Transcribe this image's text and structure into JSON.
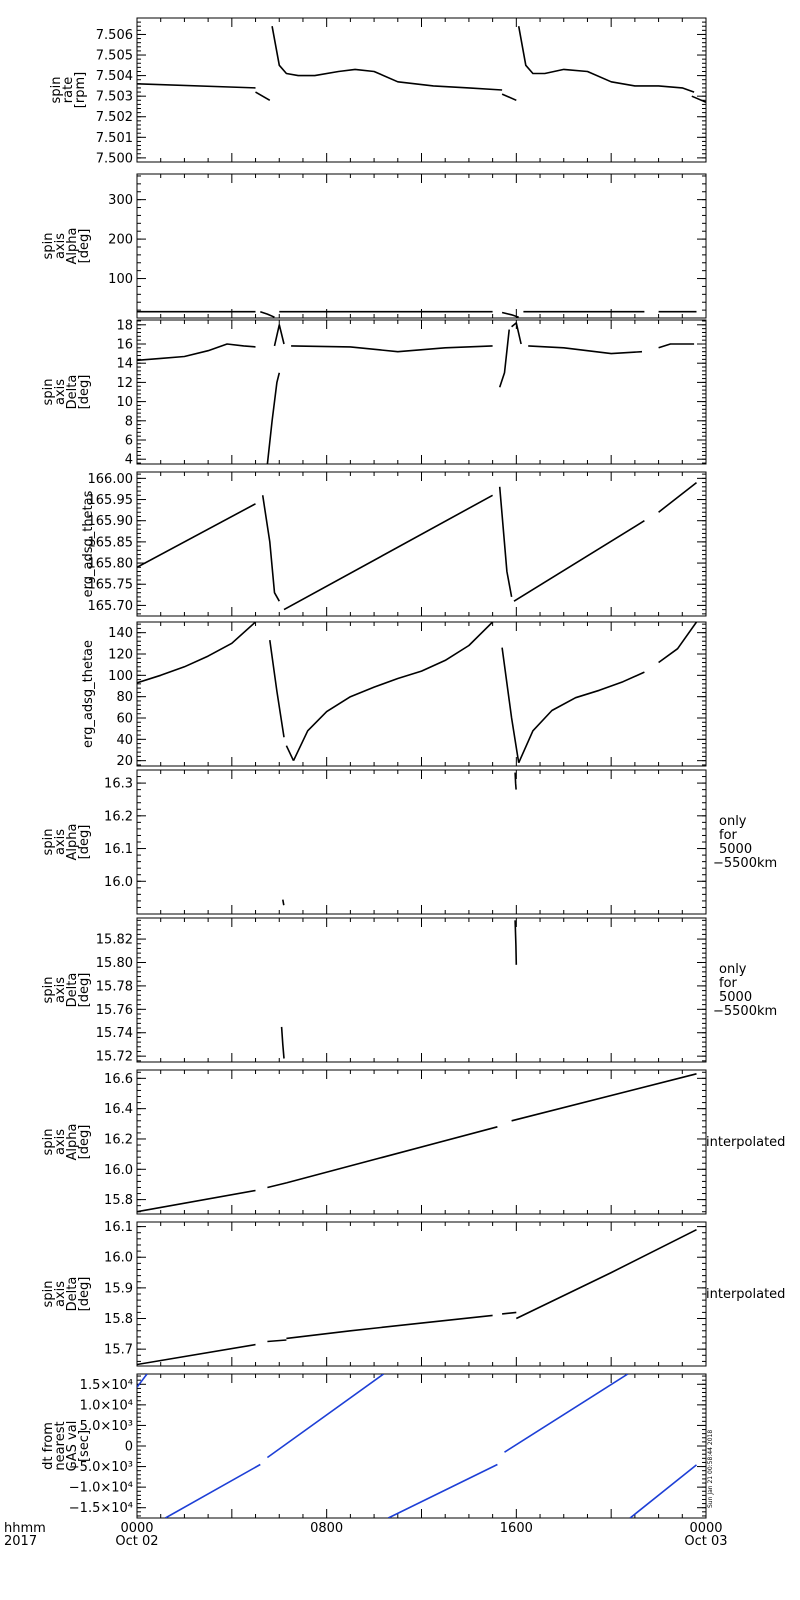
{
  "chart_data": [
    {
      "type": "scatter",
      "ylabel_lines": [
        "spin",
        "rate",
        "[rpm]"
      ],
      "ylim": [
        7.4998,
        7.5068
      ],
      "yticks": [
        7.5,
        7.501,
        7.502,
        7.503,
        7.504,
        7.505,
        7.506
      ],
      "ytick_labels": [
        "7.500",
        "7.501",
        "7.502",
        "7.503",
        "7.504",
        "7.505",
        "7.506"
      ],
      "color": "#000000",
      "segments": [
        {
          "x": [
            0.0,
            5.0
          ],
          "y": [
            7.5036,
            7.5034
          ]
        },
        {
          "x": [
            5.0,
            5.6
          ],
          "y": [
            7.5032,
            7.5028
          ]
        },
        {
          "x": [
            5.7,
            6.0,
            6.3,
            6.8,
            7.5,
            8.5,
            9.2,
            10.0,
            11.0,
            12.5,
            14.0,
            15.4
          ],
          "y": [
            7.5064,
            7.5045,
            7.5041,
            7.504,
            7.504,
            7.5042,
            7.5043,
            7.5042,
            7.5037,
            7.5035,
            7.5034,
            7.5033
          ]
        },
        {
          "x": [
            15.4,
            16.0
          ],
          "y": [
            7.5031,
            7.5028
          ]
        },
        {
          "x": [
            16.1,
            16.4,
            16.7,
            17.2,
            18.0,
            19.0,
            20.0,
            21.0,
            22.0,
            23.0,
            23.5
          ],
          "y": [
            7.5064,
            7.5045,
            7.5041,
            7.5041,
            7.5043,
            7.5042,
            7.5037,
            7.5035,
            7.5035,
            7.5034,
            7.5032
          ]
        },
        {
          "x": [
            23.4,
            23.6,
            24.0
          ],
          "y": [
            7.503,
            7.5029,
            7.5027
          ]
        }
      ]
    },
    {
      "type": "scatter",
      "ylabel_lines": [
        "spin",
        "axis",
        "Alpha",
        "[deg]"
      ],
      "ylim": [
        0,
        365
      ],
      "yticks": [
        100,
        200,
        300
      ],
      "ytick_labels": [
        "100",
        "200",
        "300"
      ],
      "color": "#000000",
      "segments": [
        {
          "x": [
            0.0,
            5.0
          ],
          "y": [
            16,
            16
          ]
        },
        {
          "x": [
            5.2,
            5.5,
            5.8
          ],
          "y": [
            16,
            10,
            2
          ]
        },
        {
          "x": [
            6.0,
            15.0
          ],
          "y": [
            16,
            16
          ]
        },
        {
          "x": [
            15.4,
            15.8,
            16.1
          ],
          "y": [
            14,
            8,
            2
          ]
        },
        {
          "x": [
            16.3,
            21.4
          ],
          "y": [
            16,
            16
          ]
        },
        {
          "x": [
            22.0,
            23.6
          ],
          "y": [
            16,
            16
          ]
        }
      ]
    },
    {
      "type": "scatter",
      "ylabel_lines": [
        "spin",
        "axis",
        "Delta",
        "[deg]"
      ],
      "ylim": [
        3.5,
        18.5
      ],
      "yticks": [
        4,
        6,
        8,
        10,
        12,
        14,
        16,
        18
      ],
      "ytick_labels": [
        "4",
        "6",
        "8",
        "10",
        "12",
        "14",
        "16",
        "18"
      ],
      "color": "#000000",
      "segments": [
        {
          "x": [
            0.0,
            1.0,
            2.0,
            3.0,
            3.8,
            4.5,
            5.0
          ],
          "y": [
            14.3,
            14.5,
            14.7,
            15.3,
            16.0,
            15.8,
            15.7
          ]
        },
        {
          "x": [
            5.5,
            5.7,
            5.9,
            6.0
          ],
          "y": [
            3.5,
            8.0,
            12.0,
            13.0
          ]
        },
        {
          "x": [
            5.8,
            6.0,
            6.2
          ],
          "y": [
            15.8,
            18.0,
            16.0
          ]
        },
        {
          "x": [
            6.5,
            9.0,
            11.0,
            13.0,
            15.0
          ],
          "y": [
            15.8,
            15.7,
            15.2,
            15.6,
            15.8
          ]
        },
        {
          "x": [
            15.3,
            15.5,
            15.7
          ],
          "y": [
            11.5,
            13.0,
            17.5
          ]
        },
        {
          "x": [
            15.8,
            16.0,
            16.2
          ],
          "y": [
            17.8,
            18.2,
            16.0
          ]
        },
        {
          "x": [
            16.5,
            18.0,
            20.0,
            21.3
          ],
          "y": [
            15.8,
            15.6,
            15.0,
            15.2
          ]
        },
        {
          "x": [
            22.0,
            22.5,
            23.5
          ],
          "y": [
            15.6,
            16.0,
            16.0
          ]
        }
      ]
    },
    {
      "type": "scatter",
      "ylabel_lines": [
        "erg_adsg_thetas"
      ],
      "ylim": [
        165.675,
        166.015
      ],
      "yticks": [
        165.7,
        165.75,
        165.8,
        165.85,
        165.9,
        165.95,
        166.0
      ],
      "ytick_labels": [
        "165.70",
        "165.75",
        "165.80",
        "165.85",
        "165.90",
        "165.95",
        "166.00"
      ],
      "color": "#000000",
      "segments": [
        {
          "x": [
            0.0,
            5.0
          ],
          "y": [
            165.79,
            165.94
          ]
        },
        {
          "x": [
            5.3,
            5.6,
            5.8,
            6.0
          ],
          "y": [
            165.96,
            165.85,
            165.73,
            165.71
          ]
        },
        {
          "x": [
            6.2,
            15.0
          ],
          "y": [
            165.69,
            165.96
          ]
        },
        {
          "x": [
            15.3,
            15.6,
            15.8
          ],
          "y": [
            165.98,
            165.78,
            165.72
          ]
        },
        {
          "x": [
            15.9,
            21.4
          ],
          "y": [
            165.71,
            165.9
          ]
        },
        {
          "x": [
            22.0,
            23.6
          ],
          "y": [
            165.92,
            165.99
          ]
        }
      ]
    },
    {
      "type": "scatter",
      "ylabel_lines": [
        "erg_adsg_thetae"
      ],
      "ylim": [
        15,
        150
      ],
      "yticks": [
        20,
        40,
        60,
        80,
        100,
        120,
        140
      ],
      "ytick_labels": [
        "20",
        "40",
        "60",
        "80",
        "100",
        "120",
        "140"
      ],
      "color": "#000000",
      "segments": [
        {
          "x": [
            0.0,
            1.0,
            2.0,
            3.0,
            4.0,
            5.0
          ],
          "y": [
            93,
            100,
            108,
            118,
            130,
            150
          ]
        },
        {
          "x": [
            5.6,
            5.9,
            6.2
          ],
          "y": [
            133,
            85,
            42
          ]
        },
        {
          "x": [
            6.3,
            6.6
          ],
          "y": [
            34,
            20
          ]
        },
        {
          "x": [
            6.6,
            7.2,
            8.0,
            9.0,
            10.0,
            11.0,
            12.0,
            13.0,
            14.0,
            15.0
          ],
          "y": [
            20,
            48,
            66,
            80,
            89,
            97,
            104,
            114,
            128,
            150
          ]
        },
        {
          "x": [
            15.4,
            15.8,
            16.1
          ],
          "y": [
            126,
            60,
            18
          ]
        },
        {
          "x": [
            16.1,
            16.7,
            17.5,
            18.5,
            19.5,
            20.5,
            21.4
          ],
          "y": [
            18,
            48,
            67,
            79,
            86,
            94,
            103
          ]
        },
        {
          "x": [
            22.0,
            22.8,
            23.6
          ],
          "y": [
            112,
            125,
            150
          ]
        }
      ]
    },
    {
      "type": "scatter",
      "ylabel_lines": [
        "spin",
        "axis",
        "Alpha",
        "[deg]"
      ],
      "note_lines": [
        "only",
        "for",
        "5000",
        "−5500km"
      ],
      "ylim": [
        15.9,
        16.34
      ],
      "yticks": [
        16.0,
        16.1,
        16.2,
        16.3
      ],
      "ytick_labels": [
        "16.0",
        "16.1",
        "16.2",
        "16.3"
      ],
      "color": "#000000",
      "segments": [
        {
          "x": [
            6.15,
            6.17,
            6.19
          ],
          "y": [
            15.944,
            15.935,
            15.927
          ]
        },
        {
          "x": [
            15.95,
            15.97,
            15.99
          ],
          "y": [
            16.332,
            16.3,
            16.28
          ]
        }
      ]
    },
    {
      "type": "scatter",
      "ylabel_lines": [
        "spin",
        "axis",
        "Delta",
        "[deg]"
      ],
      "note_lines": [
        "only",
        "for",
        "5000",
        "−5500km"
      ],
      "ylim": [
        15.715,
        15.838
      ],
      "yticks": [
        15.72,
        15.74,
        15.76,
        15.78,
        15.8,
        15.82
      ],
      "ytick_labels": [
        "15.72",
        "15.74",
        "15.76",
        "15.78",
        "15.80",
        "15.82"
      ],
      "color": "#000000",
      "segments": [
        {
          "x": [
            6.1,
            6.15,
            6.2
          ],
          "y": [
            15.745,
            15.73,
            15.718
          ]
        },
        {
          "x": [
            15.95,
            15.98,
            16.0
          ],
          "y": [
            15.836,
            15.815,
            15.798
          ]
        }
      ]
    },
    {
      "type": "line",
      "ylabel_lines": [
        "spin",
        "axis",
        "Alpha",
        "[deg]"
      ],
      "note_lines": [
        "interpolated"
      ],
      "ylim": [
        15.705,
        16.655
      ],
      "yticks": [
        15.8,
        16.0,
        16.2,
        16.4,
        16.6
      ],
      "ytick_labels": [
        "15.8",
        "16.0",
        "16.2",
        "16.4",
        "16.6"
      ],
      "color": "#000000",
      "segments": [
        {
          "x": [
            0.0,
            5.0
          ],
          "y": [
            15.72,
            15.86
          ]
        },
        {
          "x": [
            5.5,
            6.3
          ],
          "y": [
            15.88,
            15.91
          ]
        },
        {
          "x": [
            6.3,
            15.2
          ],
          "y": [
            15.91,
            16.28
          ]
        },
        {
          "x": [
            15.8,
            23.6
          ],
          "y": [
            16.32,
            16.63
          ]
        }
      ]
    },
    {
      "type": "line",
      "ylabel_lines": [
        "spin",
        "axis",
        "Delta",
        "[deg]"
      ],
      "note_lines": [
        "interpolated"
      ],
      "ylim": [
        15.645,
        16.115
      ],
      "yticks": [
        15.7,
        15.8,
        15.9,
        16.0,
        16.1
      ],
      "ytick_labels": [
        "15.7",
        "15.8",
        "15.9",
        "16.0",
        "16.1"
      ],
      "color": "#000000",
      "segments": [
        {
          "x": [
            0.0,
            5.0
          ],
          "y": [
            15.65,
            15.715
          ]
        },
        {
          "x": [
            5.5,
            6.3
          ],
          "y": [
            15.725,
            15.73
          ]
        },
        {
          "x": [
            6.3,
            9.0,
            12.0,
            15.0
          ],
          "y": [
            15.735,
            15.76,
            15.785,
            15.81
          ]
        },
        {
          "x": [
            15.4,
            16.0
          ],
          "y": [
            15.815,
            15.82
          ]
        },
        {
          "x": [
            16.0,
            20.0,
            23.6
          ],
          "y": [
            15.8,
            15.95,
            16.09
          ]
        }
      ]
    },
    {
      "type": "line",
      "ylabel_lines": [
        "dt from",
        "nearest",
        "GAS val",
        "[sec]"
      ],
      "ylim": [
        -17500,
        17500
      ],
      "yticks": [
        -15000,
        -10000,
        -5000,
        0,
        5000,
        10000,
        15000
      ],
      "ytick_labels": [
        "−1.5×10⁴",
        "−1.0×10⁴",
        "−5.0×10³",
        "0",
        "5.0×10³",
        "1.0×10⁴",
        "1.5×10⁴"
      ],
      "stamp": "Sun Jan 21 00:58:44 2018",
      "color": "#1d3fd6",
      "segments": [
        {
          "x": [
            0.0,
            0.42
          ],
          "y": [
            14300,
            17500
          ]
        },
        {
          "x": [
            1.2,
            5.2
          ],
          "y": [
            -17500,
            -4500
          ]
        },
        {
          "x": [
            5.5,
            10.4
          ],
          "y": [
            -2800,
            17500
          ]
        },
        {
          "x": [
            10.6,
            15.2
          ],
          "y": [
            -17500,
            -4500
          ]
        },
        {
          "x": [
            15.5,
            20.7
          ],
          "y": [
            -1500,
            17500
          ]
        },
        {
          "x": [
            20.8,
            23.6
          ],
          "y": [
            -17500,
            -4600
          ]
        }
      ]
    }
  ],
  "xaxis": {
    "xlim": [
      0,
      24
    ],
    "ticks": [
      {
        "x": 0,
        "line1": "0000",
        "line2": "Oct 02"
      },
      {
        "x": 8,
        "line1": "0800",
        "line2": ""
      },
      {
        "x": 16,
        "line1": "1600",
        "line2": ""
      },
      {
        "x": 24,
        "line1": "0000",
        "line2": "Oct 03"
      }
    ],
    "label_line1": "hhmm",
    "label_line2": "2017"
  }
}
